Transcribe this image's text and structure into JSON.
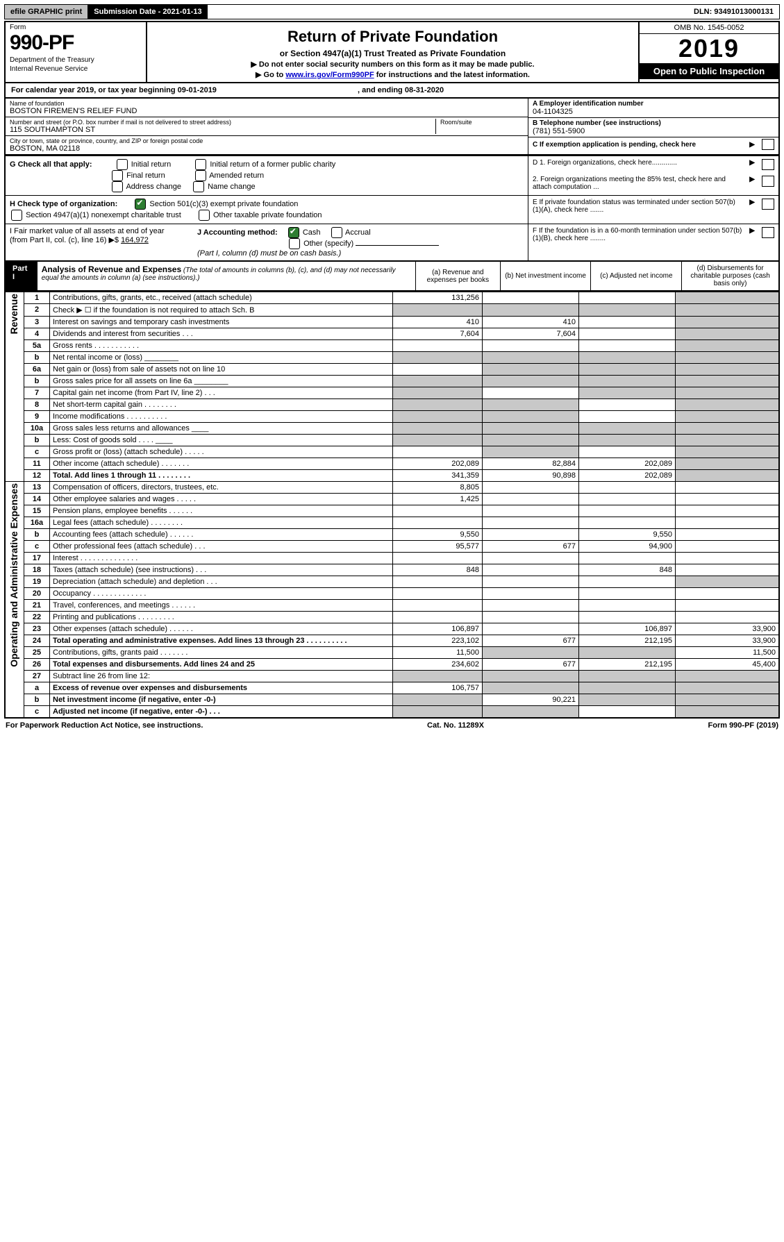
{
  "topbar": {
    "efile": "efile GRAPHIC print",
    "submission": "Submission Date - 2021-01-13",
    "dln": "DLN: 93491013000131"
  },
  "header": {
    "form_label": "Form",
    "form_number": "990-PF",
    "department": "Department of the Treasury",
    "irs": "Internal Revenue Service",
    "title": "Return of Private Foundation",
    "subtitle": "or Section 4947(a)(1) Trust Treated as Private Foundation",
    "note1": "▶ Do not enter social security numbers on this form as it may be made public.",
    "note2_pre": "▶ Go to ",
    "note2_link": "www.irs.gov/Form990PF",
    "note2_post": " for instructions and the latest information.",
    "omb": "OMB No. 1545-0052",
    "year": "2019",
    "open": "Open to Public Inspection"
  },
  "cal_year": {
    "pre": "For calendar year 2019, or tax year beginning ",
    "begin": "09-01-2019",
    "mid": " , and ending ",
    "end": "08-31-2020"
  },
  "entity": {
    "name_label": "Name of foundation",
    "name": "BOSTON FIREMEN'S RELIEF FUND",
    "addr_label": "Number and street (or P.O. box number if mail is not delivered to street address)",
    "addr": "115 SOUTHAMPTON ST",
    "room_label": "Room/suite",
    "city_label": "City or town, state or province, country, and ZIP or foreign postal code",
    "city": "BOSTON, MA  02118",
    "ein_label": "A Employer identification number",
    "ein": "04-1104325",
    "phone_label": "B Telephone number (see instructions)",
    "phone": "(781) 551-5900",
    "c_label": "C If exemption application is pending, check here"
  },
  "g": {
    "label": "G Check all that apply:",
    "o1": "Initial return",
    "o2": "Final return",
    "o3": "Address change",
    "o4": "Initial return of a former public charity",
    "o5": "Amended return",
    "o6": "Name change"
  },
  "h": {
    "label": "H Check type of organization:",
    "o1": "Section 501(c)(3) exempt private foundation",
    "o2": "Section 4947(a)(1) nonexempt charitable trust",
    "o3": "Other taxable private foundation"
  },
  "i": {
    "label": "I Fair market value of all assets at end of year (from Part II, col. (c), line 16)",
    "arrow": "▶$",
    "value": "164,972"
  },
  "j": {
    "label": "J Accounting method:",
    "cash": "Cash",
    "accrual": "Accrual",
    "other": "Other (specify)",
    "note": "(Part I, column (d) must be on cash basis.)"
  },
  "d_items": {
    "d1": "D 1. Foreign organizations, check here.............",
    "d2": "2. Foreign organizations meeting the 85% test, check here and attach computation ...",
    "e": "E  If private foundation status was terminated under section 507(b)(1)(A), check here .......",
    "f": "F  If the foundation is in a 60-month termination under section 507(b)(1)(B), check here ........"
  },
  "part1": {
    "tab": "Part I",
    "title": "Analysis of Revenue and Expenses",
    "note": " (The total of amounts in columns (b), (c), and (d) may not necessarily equal the amounts in column (a) (see instructions).)",
    "col_a": "(a) Revenue and expenses per books",
    "col_b": "(b) Net investment income",
    "col_c": "(c) Adjusted net income",
    "col_d": "(d) Disbursements for charitable purposes (cash basis only)"
  },
  "section_labels": {
    "revenue": "Revenue",
    "expenses": "Operating and Administrative Expenses"
  },
  "rows": [
    {
      "n": "1",
      "desc": "Contributions, gifts, grants, etc., received (attach schedule)",
      "a": "131,256",
      "b": "",
      "c": "",
      "d": "",
      "d_shade": true
    },
    {
      "n": "2",
      "desc": "Check ▶ ☐ if the foundation is not required to attach Sch. B",
      "a": "",
      "b": "",
      "c": "",
      "d": "",
      "a_shade": true,
      "b_shade": true,
      "c_shade": true,
      "d_shade": true,
      "bold_part": "not"
    },
    {
      "n": "3",
      "desc": "Interest on savings and temporary cash investments",
      "a": "410",
      "b": "410",
      "c": "",
      "d": "",
      "d_shade": true
    },
    {
      "n": "4",
      "desc": "Dividends and interest from securities    .   .   .",
      "a": "7,604",
      "b": "7,604",
      "c": "",
      "d": "",
      "d_shade": true
    },
    {
      "n": "5a",
      "desc": "Gross rents     .   .   .   .   .   .   .   .   .   .   .",
      "a": "",
      "b": "",
      "c": "",
      "d": "",
      "d_shade": true
    },
    {
      "n": "b",
      "desc": "Net rental income or (loss) ________",
      "a": "",
      "b": "",
      "c": "",
      "d": "",
      "a_shade": true,
      "b_shade": true,
      "c_shade": true,
      "d_shade": true
    },
    {
      "n": "6a",
      "desc": "Net gain or (loss) from sale of assets not on line 10",
      "a": "",
      "b": "",
      "c": "",
      "d": "",
      "b_shade": true,
      "c_shade": true,
      "d_shade": true
    },
    {
      "n": "b",
      "desc": "Gross sales price for all assets on line 6a ________",
      "a": "",
      "b": "",
      "c": "",
      "d": "",
      "a_shade": true,
      "b_shade": true,
      "c_shade": true,
      "d_shade": true
    },
    {
      "n": "7",
      "desc": "Capital gain net income (from Part IV, line 2)    .   .   .",
      "a": "",
      "b": "",
      "c": "",
      "d": "",
      "a_shade": true,
      "c_shade": true,
      "d_shade": true
    },
    {
      "n": "8",
      "desc": "Net short-term capital gain   .   .   .   .   .   .   .   .",
      "a": "",
      "b": "",
      "c": "",
      "d": "",
      "a_shade": true,
      "b_shade": true,
      "d_shade": true
    },
    {
      "n": "9",
      "desc": "Income modifications  .   .   .   .   .   .   .   .   .   .",
      "a": "",
      "b": "",
      "c": "",
      "d": "",
      "a_shade": true,
      "b_shade": true,
      "d_shade": true
    },
    {
      "n": "10a",
      "desc": "Gross sales less returns and allowances ____",
      "a": "",
      "b": "",
      "c": "",
      "d": "",
      "a_shade": true,
      "b_shade": true,
      "c_shade": true,
      "d_shade": true
    },
    {
      "n": "b",
      "desc": "Less: Cost of goods sold     .   .   .   . ____",
      "a": "",
      "b": "",
      "c": "",
      "d": "",
      "a_shade": true,
      "b_shade": true,
      "c_shade": true,
      "d_shade": true
    },
    {
      "n": "c",
      "desc": "Gross profit or (loss) (attach schedule)    .   .   .   .   .",
      "a": "",
      "b": "",
      "c": "",
      "d": "",
      "b_shade": true,
      "d_shade": true
    },
    {
      "n": "11",
      "desc": "Other income (attach schedule)    .   .   .   .   .   .   .",
      "a": "202,089",
      "b": "82,884",
      "c": "202,089",
      "d": "",
      "d_shade": true
    },
    {
      "n": "12",
      "desc": "Total. Add lines 1 through 11    .   .   .   .   .   .   .   .",
      "a": "341,359",
      "b": "90,898",
      "c": "202,089",
      "d": "",
      "d_shade": true,
      "bold": true
    },
    {
      "n": "13",
      "desc": "Compensation of officers, directors, trustees, etc.",
      "a": "8,805",
      "b": "",
      "c": "",
      "d": ""
    },
    {
      "n": "14",
      "desc": "Other employee salaries and wages    .   .   .   .   .",
      "a": "1,425",
      "b": "",
      "c": "",
      "d": ""
    },
    {
      "n": "15",
      "desc": "Pension plans, employee benefits   .   .   .   .   .   .",
      "a": "",
      "b": "",
      "c": "",
      "d": ""
    },
    {
      "n": "16a",
      "desc": "Legal fees (attach schedule)  .   .   .   .   .   .   .   .",
      "a": "",
      "b": "",
      "c": "",
      "d": ""
    },
    {
      "n": "b",
      "desc": "Accounting fees (attach schedule)  .   .   .   .   .   .",
      "a": "9,550",
      "b": "",
      "c": "9,550",
      "d": ""
    },
    {
      "n": "c",
      "desc": "Other professional fees (attach schedule)    .   .   .",
      "a": "95,577",
      "b": "677",
      "c": "94,900",
      "d": ""
    },
    {
      "n": "17",
      "desc": "Interest   .   .   .   .   .   .   .   .   .   .   .   .   .   .",
      "a": "",
      "b": "",
      "c": "",
      "d": ""
    },
    {
      "n": "18",
      "desc": "Taxes (attach schedule) (see instructions)    .   .   .",
      "a": "848",
      "b": "",
      "c": "848",
      "d": ""
    },
    {
      "n": "19",
      "desc": "Depreciation (attach schedule) and depletion    .   .   .",
      "a": "",
      "b": "",
      "c": "",
      "d": "",
      "d_shade": true
    },
    {
      "n": "20",
      "desc": "Occupancy  .   .   .   .   .   .   .   .   .   .   .   .   .",
      "a": "",
      "b": "",
      "c": "",
      "d": ""
    },
    {
      "n": "21",
      "desc": "Travel, conferences, and meetings  .   .   .   .   .   .",
      "a": "",
      "b": "",
      "c": "",
      "d": ""
    },
    {
      "n": "22",
      "desc": "Printing and publications  .   .   .   .   .   .   .   .   .",
      "a": "",
      "b": "",
      "c": "",
      "d": ""
    },
    {
      "n": "23",
      "desc": "Other expenses (attach schedule)  .   .   .   .   .   .",
      "a": "106,897",
      "b": "",
      "c": "106,897",
      "d": "33,900"
    },
    {
      "n": "24",
      "desc": "Total operating and administrative expenses. Add lines 13 through 23   .   .   .   .   .   .   .   .   .   .",
      "a": "223,102",
      "b": "677",
      "c": "212,195",
      "d": "33,900",
      "bold": true
    },
    {
      "n": "25",
      "desc": "Contributions, gifts, grants paid    .   .   .   .   .   .   .",
      "a": "11,500",
      "b": "",
      "c": "",
      "d": "11,500",
      "b_shade": true,
      "c_shade": true
    },
    {
      "n": "26",
      "desc": "Total expenses and disbursements. Add lines 24 and 25",
      "a": "234,602",
      "b": "677",
      "c": "212,195",
      "d": "45,400",
      "bold": true
    },
    {
      "n": "27",
      "desc": "Subtract line 26 from line 12:",
      "a": "",
      "b": "",
      "c": "",
      "d": "",
      "a_shade": true,
      "b_shade": true,
      "c_shade": true,
      "d_shade": true
    },
    {
      "n": "a",
      "desc": "Excess of revenue over expenses and disbursements",
      "a": "106,757",
      "b": "",
      "c": "",
      "d": "",
      "b_shade": true,
      "c_shade": true,
      "d_shade": true,
      "bold": true
    },
    {
      "n": "b",
      "desc": "Net investment income (if negative, enter -0-)",
      "a": "",
      "b": "90,221",
      "c": "",
      "d": "",
      "a_shade": true,
      "c_shade": true,
      "d_shade": true,
      "bold": true
    },
    {
      "n": "c",
      "desc": "Adjusted net income (if negative, enter -0-)   .   .   .",
      "a": "",
      "b": "",
      "c": "",
      "d": "",
      "a_shade": true,
      "b_shade": true,
      "d_shade": true,
      "bold": true
    }
  ],
  "footer": {
    "left": "For Paperwork Reduction Act Notice, see instructions.",
    "mid": "Cat. No. 11289X",
    "right": "Form 990-PF (2019)",
    "form_bold": "990-PF"
  },
  "colors": {
    "shade": "#c8c8c8",
    "link": "#0000cc",
    "check_green": "#2e7d32"
  }
}
